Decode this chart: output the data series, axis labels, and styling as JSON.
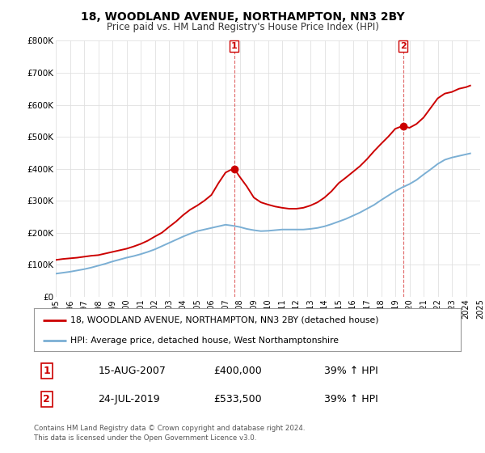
{
  "title": "18, WOODLAND AVENUE, NORTHAMPTON, NN3 2BY",
  "subtitle": "Price paid vs. HM Land Registry's House Price Index (HPI)",
  "xlim": [
    1995,
    2025
  ],
  "ylim": [
    0,
    800000
  ],
  "yticks": [
    0,
    100000,
    200000,
    300000,
    400000,
    500000,
    600000,
    700000,
    800000
  ],
  "ytick_labels": [
    "£0",
    "£100K",
    "£200K",
    "£300K",
    "£400K",
    "£500K",
    "£600K",
    "£700K",
    "£800K"
  ],
  "xticks": [
    1995,
    1996,
    1997,
    1998,
    1999,
    2000,
    2001,
    2002,
    2003,
    2004,
    2005,
    2006,
    2007,
    2008,
    2009,
    2010,
    2011,
    2012,
    2013,
    2014,
    2015,
    2016,
    2017,
    2018,
    2019,
    2020,
    2021,
    2022,
    2023,
    2024,
    2025
  ],
  "red_line_color": "#cc0000",
  "blue_line_color": "#7bafd4",
  "sale1_x": 2007.62,
  "sale1_y": 400000,
  "sale2_x": 2019.56,
  "sale2_y": 533500,
  "legend_line1": "18, WOODLAND AVENUE, NORTHAMPTON, NN3 2BY (detached house)",
  "legend_line2": "HPI: Average price, detached house, West Northamptonshire",
  "table_row1": [
    "1",
    "15-AUG-2007",
    "£400,000",
    "39% ↑ HPI"
  ],
  "table_row2": [
    "2",
    "24-JUL-2019",
    "£533,500",
    "39% ↑ HPI"
  ],
  "footer": "Contains HM Land Registry data © Crown copyright and database right 2024.\nThis data is licensed under the Open Government Licence v3.0.",
  "background_color": "#ffffff",
  "grid_color": "#e0e0e0",
  "red_years": [
    1995,
    1995.5,
    1996,
    1996.5,
    1997,
    1997.5,
    1998,
    1998.5,
    1999,
    1999.5,
    2000,
    2000.5,
    2001,
    2001.5,
    2002,
    2002.5,
    2003,
    2003.5,
    2004,
    2004.5,
    2005,
    2005.5,
    2006,
    2006.5,
    2007,
    2007.3,
    2007.62,
    2008,
    2008.5,
    2009,
    2009.5,
    2010,
    2010.5,
    2011,
    2011.5,
    2012,
    2012.5,
    2013,
    2013.5,
    2014,
    2014.5,
    2015,
    2015.5,
    2016,
    2016.5,
    2017,
    2017.5,
    2018,
    2018.5,
    2019,
    2019.3,
    2019.56,
    2020,
    2020.5,
    2021,
    2021.5,
    2022,
    2022.5,
    2023,
    2023.5,
    2024,
    2024.3
  ],
  "red_values": [
    115000,
    118000,
    120000,
    122000,
    125000,
    128000,
    130000,
    135000,
    140000,
    145000,
    150000,
    157000,
    165000,
    175000,
    188000,
    200000,
    218000,
    235000,
    255000,
    272000,
    285000,
    300000,
    318000,
    355000,
    388000,
    395000,
    400000,
    375000,
    345000,
    310000,
    295000,
    288000,
    282000,
    278000,
    275000,
    275000,
    278000,
    285000,
    295000,
    310000,
    330000,
    355000,
    372000,
    390000,
    408000,
    430000,
    455000,
    478000,
    500000,
    525000,
    530000,
    533500,
    528000,
    540000,
    560000,
    590000,
    620000,
    635000,
    640000,
    650000,
    655000,
    660000
  ],
  "blue_years": [
    1995,
    1995.5,
    1996,
    1996.5,
    1997,
    1997.5,
    1998,
    1998.5,
    1999,
    1999.5,
    2000,
    2000.5,
    2001,
    2001.5,
    2002,
    2002.5,
    2003,
    2003.5,
    2004,
    2004.5,
    2005,
    2005.5,
    2006,
    2006.5,
    2007,
    2007.5,
    2008,
    2008.5,
    2009,
    2009.5,
    2010,
    2010.5,
    2011,
    2011.5,
    2012,
    2012.5,
    2013,
    2013.5,
    2014,
    2014.5,
    2015,
    2015.5,
    2016,
    2016.5,
    2017,
    2017.5,
    2018,
    2018.5,
    2019,
    2019.5,
    2020,
    2020.5,
    2021,
    2021.5,
    2022,
    2022.5,
    2023,
    2023.5,
    2024,
    2024.3
  ],
  "blue_values": [
    72000,
    75000,
    78000,
    82000,
    86000,
    91000,
    97000,
    103000,
    110000,
    116000,
    122000,
    127000,
    133000,
    140000,
    148000,
    158000,
    168000,
    178000,
    188000,
    197000,
    205000,
    210000,
    215000,
    220000,
    225000,
    222000,
    218000,
    212000,
    208000,
    205000,
    206000,
    208000,
    210000,
    210000,
    210000,
    210000,
    212000,
    215000,
    220000,
    227000,
    235000,
    243000,
    253000,
    263000,
    275000,
    287000,
    302000,
    316000,
    330000,
    342000,
    352000,
    365000,
    382000,
    398000,
    415000,
    428000,
    435000,
    440000,
    445000,
    448000
  ]
}
